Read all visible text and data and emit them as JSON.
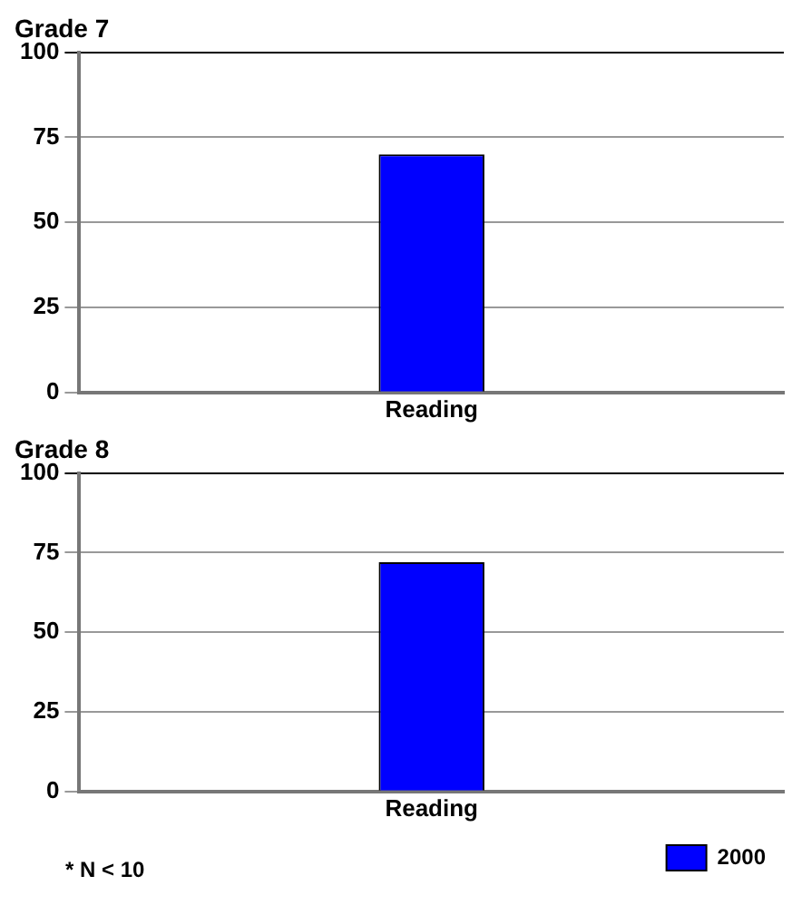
{
  "chart_data": [
    {
      "type": "bar",
      "title": "Grade 7",
      "categories": [
        "Reading"
      ],
      "series": [
        {
          "color": "#0000ff",
          "values": [
            70
          ]
        }
      ],
      "ylim": [
        0,
        100
      ],
      "yticks": [
        0,
        25,
        50,
        75,
        100
      ],
      "grid": "y",
      "legend": false
    },
    {
      "type": "bar",
      "title": "Grade 8",
      "categories": [
        "Reading"
      ],
      "series": [
        {
          "name": "2000",
          "color": "#0000ff",
          "values": [
            72
          ]
        }
      ],
      "ylim": [
        0,
        100
      ],
      "yticks": [
        0,
        25,
        50,
        75,
        100
      ],
      "grid": "y",
      "legend": "bottom right",
      "annotations": [
        "* N < 10"
      ]
    }
  ]
}
